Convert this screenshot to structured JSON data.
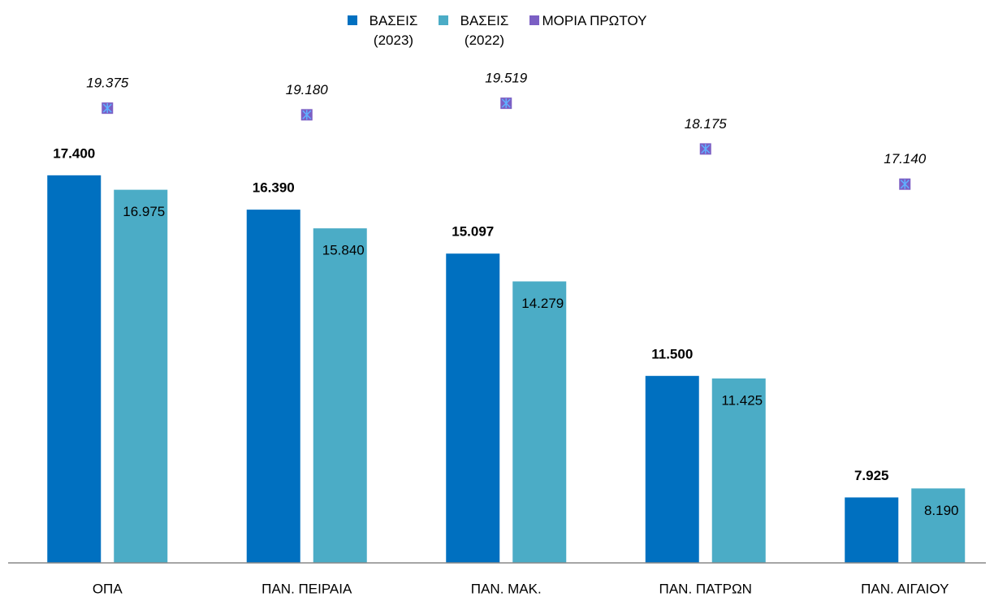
{
  "chart_data": {
    "type": "bar",
    "categories": [
      "ΟΠΑ",
      "ΠΑΝ. ΠΕΙΡΑΙΑ",
      "ΠΑΝ. ΜΑΚ.",
      "ΠΑΝ. ΠΑΤΡΩΝ",
      "ΠΑΝ. ΑΙΓΑΙΟΥ"
    ],
    "series": [
      {
        "name": "ΒΑΣΕΙΣ (2023)",
        "color": "#0070c0",
        "values": [
          17400,
          16390,
          15097,
          11500,
          7925
        ],
        "value_labels": [
          "17.400",
          "16.390",
          "15.097",
          "11.500",
          "7.925"
        ]
      },
      {
        "name": "ΒΑΣΕΙΣ (2022)",
        "color": "#4bacc6",
        "values": [
          16975,
          15840,
          14279,
          11425,
          8190
        ],
        "value_labels": [
          "16.975",
          "15.840",
          "14.279",
          "11.425",
          "8.190"
        ]
      },
      {
        "name": "ΜΟΡΙΑ ΠΡΩΤΟΥ",
        "color": "#7b5fc4",
        "type": "marker",
        "values": [
          19375,
          19180,
          19519,
          18175,
          17140
        ],
        "value_labels": [
          "19.375",
          "19.180",
          "19.519",
          "18.175",
          "17.140"
        ]
      }
    ],
    "ylim": [
      6000,
      20000
    ]
  }
}
